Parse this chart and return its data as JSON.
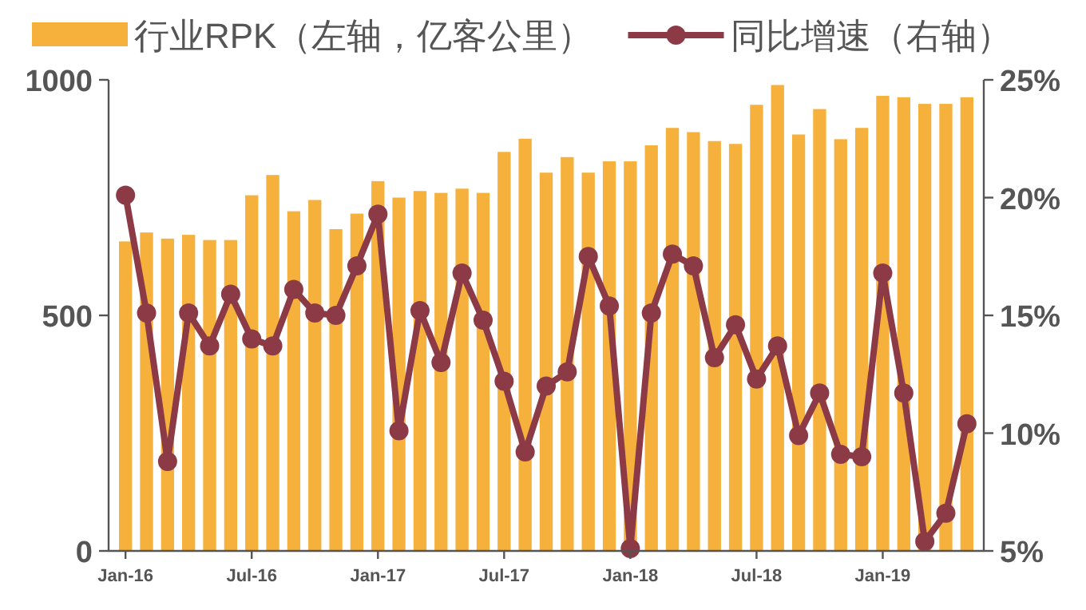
{
  "chart_data": {
    "type": "bar",
    "categories": [
      "Jan-16",
      null,
      null,
      null,
      null,
      null,
      "Jul-16",
      null,
      null,
      null,
      null,
      null,
      "Jan-17",
      null,
      null,
      null,
      null,
      null,
      "Jul-17",
      null,
      null,
      null,
      null,
      null,
      "Jan-18",
      null,
      null,
      null,
      null,
      null,
      "Jul-18",
      null,
      null,
      null,
      null,
      null,
      "Jan-19",
      null,
      null,
      null,
      null
    ],
    "series": [
      {
        "name": "行业RPK（左轴，亿客公里）",
        "color": "#f6b13d",
        "values": [
          657,
          676,
          663,
          671,
          660,
          660,
          755,
          798,
          721,
          745,
          683,
          716,
          785,
          750,
          764,
          760,
          769,
          760,
          847,
          875,
          803,
          836,
          803,
          827,
          827,
          861,
          898,
          889,
          870,
          864,
          947,
          989,
          884,
          938,
          874,
          898,
          966,
          963,
          949,
          949,
          963
        ]
      },
      {
        "name": "同比增速（右轴）",
        "type": "line",
        "axis": "y2",
        "color": "#8c3b46",
        "marker": "circle",
        "values": [
          20.1,
          15.1,
          8.8,
          15.1,
          13.7,
          15.9,
          14.0,
          13.7,
          16.1,
          15.1,
          15.0,
          17.1,
          19.3,
          10.1,
          15.2,
          13.0,
          16.8,
          14.8,
          12.2,
          9.2,
          12.0,
          12.6,
          17.5,
          15.4,
          5.1,
          15.1,
          17.6,
          17.1,
          13.2,
          14.6,
          12.3,
          13.7,
          9.9,
          11.7,
          9.1,
          9.0,
          16.8,
          11.7,
          5.4,
          6.6,
          10.4
        ]
      }
    ],
    "ylim": [
      0,
      1000
    ],
    "yticks": [
      0,
      500,
      1000
    ],
    "y2lim": [
      5,
      25
    ],
    "y2ticks": [
      {
        "value": 5,
        "label": "5%"
      },
      {
        "value": 10,
        "label": "10%"
      },
      {
        "value": 15,
        "label": "15%"
      },
      {
        "value": 20,
        "label": "20%"
      },
      {
        "value": 25,
        "label": "25%"
      }
    ],
    "grid": false,
    "legend": "top"
  }
}
